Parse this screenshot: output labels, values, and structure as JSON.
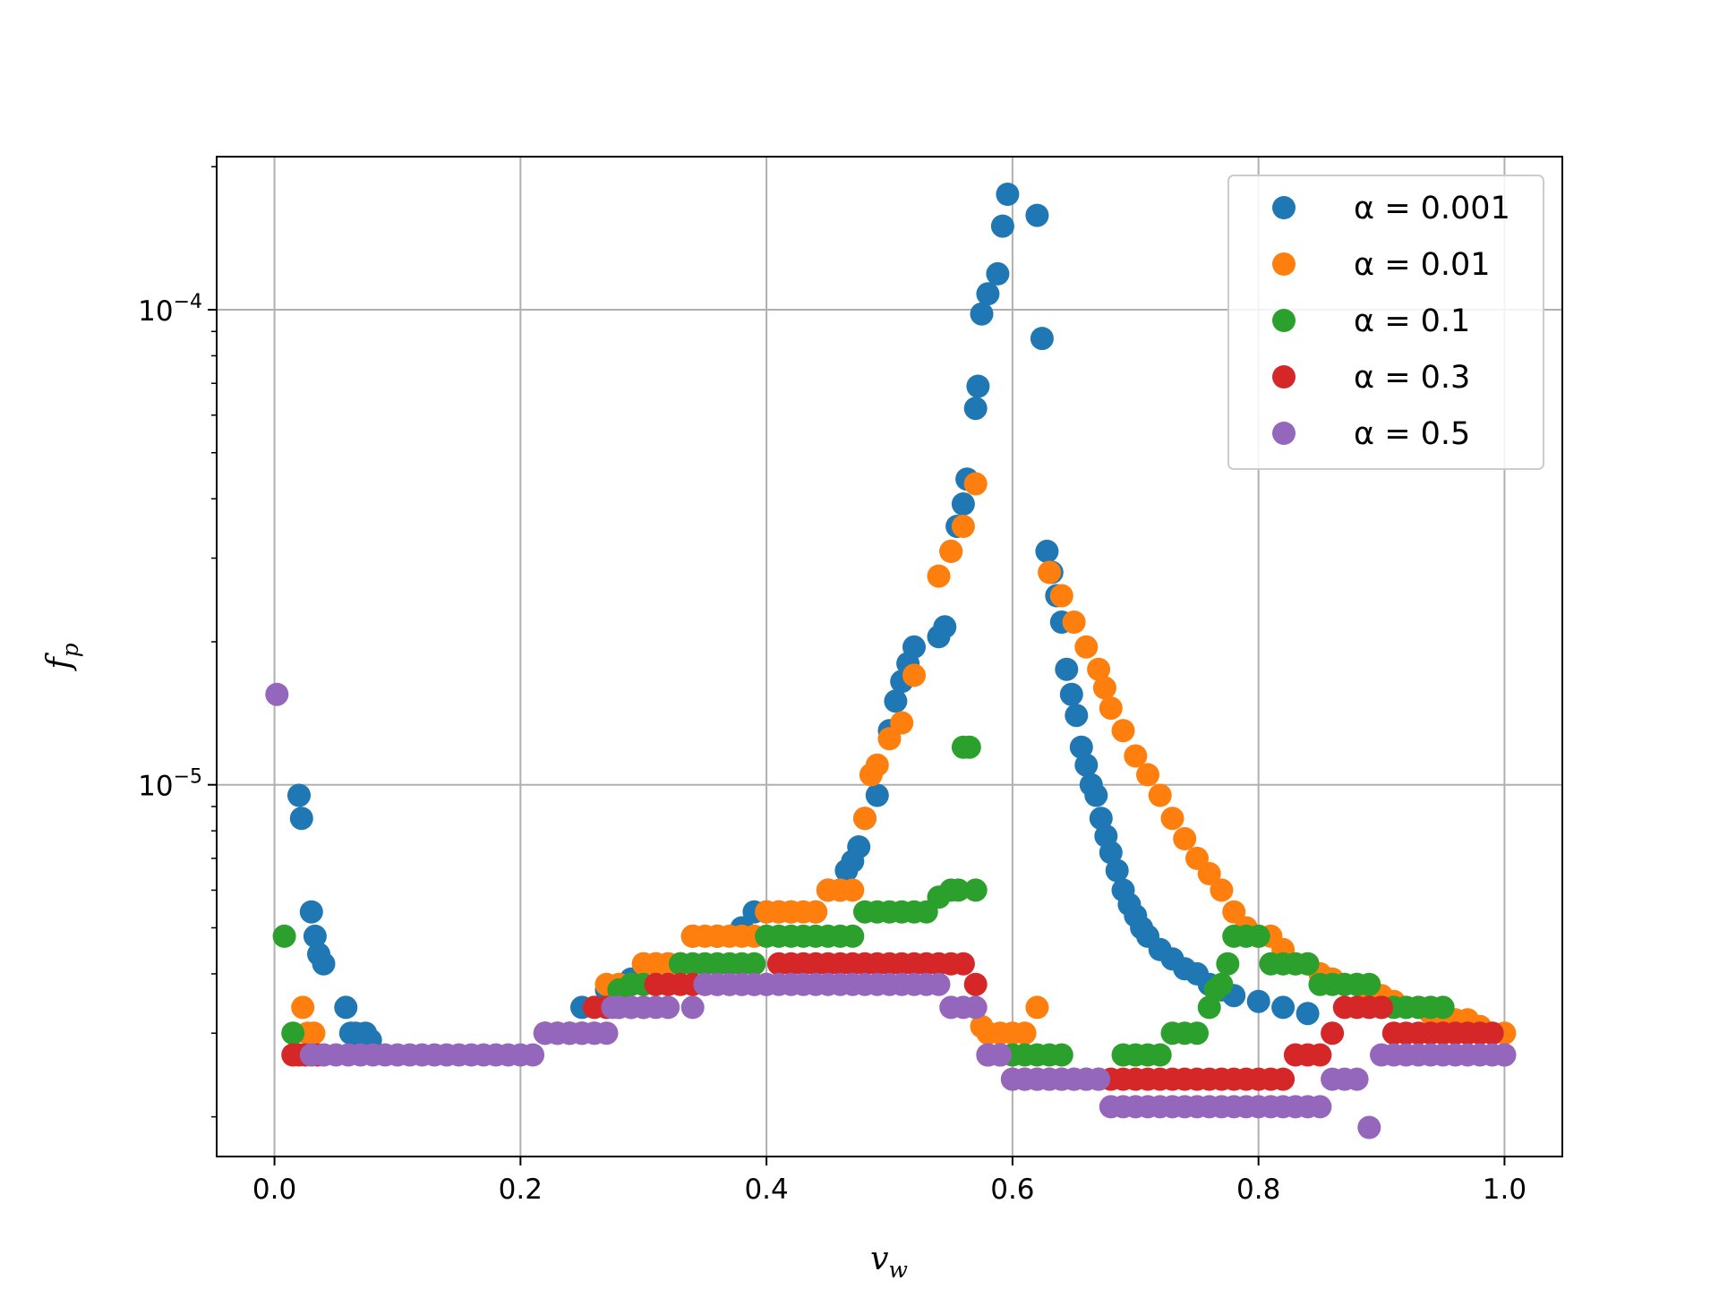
{
  "chart_data": {
    "type": "scatter",
    "title": "",
    "xlabel": "v_w",
    "ylabel": "f_p",
    "xlim": [
      -0.047,
      1.047
    ],
    "ylim": [
      1.65e-06,
      0.00021
    ],
    "yscale": "log",
    "grid": true,
    "legend_position": "top-right",
    "x_ticks": [
      {
        "value": 0.0,
        "label": "0.0"
      },
      {
        "value": 0.2,
        "label": "0.2"
      },
      {
        "value": 0.4,
        "label": "0.4"
      },
      {
        "value": 0.6,
        "label": "0.6"
      },
      {
        "value": 0.8,
        "label": "0.8"
      },
      {
        "value": 1.0,
        "label": "1.0"
      }
    ],
    "y_ticks": [
      {
        "value": 1e-05,
        "base": "10",
        "exponent": "−5"
      },
      {
        "value": 0.0001,
        "base": "10",
        "exponent": "−4"
      }
    ],
    "series": [
      {
        "name": "α = 0.001",
        "color": "#1f77b4",
        "x": [
          0.02,
          0.022,
          0.03,
          0.033,
          0.036,
          0.04,
          0.058,
          0.062,
          0.066,
          0.07,
          0.074,
          0.078,
          0.25,
          0.27,
          0.29,
          0.3,
          0.31,
          0.32,
          0.33,
          0.34,
          0.36,
          0.38,
          0.39,
          0.4,
          0.41,
          0.42,
          0.44,
          0.45,
          0.46,
          0.465,
          0.47,
          0.475,
          0.48,
          0.49,
          0.5,
          0.505,
          0.51,
          0.515,
          0.52,
          0.54,
          0.545,
          0.55,
          0.555,
          0.56,
          0.563,
          0.57,
          0.572,
          0.575,
          0.58,
          0.588,
          0.592,
          0.596,
          0.62,
          0.624,
          0.628,
          0.632,
          0.636,
          0.64,
          0.644,
          0.648,
          0.652,
          0.656,
          0.66,
          0.664,
          0.668,
          0.672,
          0.676,
          0.68,
          0.685,
          0.69,
          0.695,
          0.7,
          0.705,
          0.71,
          0.72,
          0.73,
          0.74,
          0.75,
          0.76,
          0.77,
          0.78,
          0.8,
          0.82,
          0.84
        ],
        "y": [
          9.5e-06,
          8.5e-06,
          5.4e-06,
          4.8e-06,
          4.4e-06,
          4.2e-06,
          3.4e-06,
          3e-06,
          3e-06,
          2.9e-06,
          3e-06,
          2.9e-06,
          3.4e-06,
          3.7e-06,
          3.9e-06,
          4.2e-06,
          4.2e-06,
          4.2e-06,
          4.2e-06,
          4.8e-06,
          4.8e-06,
          5e-06,
          5.4e-06,
          5.4e-06,
          5.4e-06,
          5.4e-06,
          5.4e-06,
          6e-06,
          6e-06,
          6.6e-06,
          6.9e-06,
          7.4e-06,
          8.5e-06,
          9.5e-06,
          1.3e-05,
          1.5e-05,
          1.65e-05,
          1.8e-05,
          1.95e-05,
          2.05e-05,
          2.15e-05,
          3.1e-05,
          3.5e-05,
          3.9e-05,
          4.4e-05,
          6.2e-05,
          6.9e-05,
          9.8e-05,
          0.000108,
          0.000119,
          0.00015,
          0.000175,
          0.000158,
          8.7e-05,
          3.1e-05,
          2.8e-05,
          2.5e-05,
          2.2e-05,
          1.75e-05,
          1.55e-05,
          1.4e-05,
          1.2e-05,
          1.1e-05,
          1e-05,
          9.5e-06,
          8.5e-06,
          7.8e-06,
          7.2e-06,
          6.6e-06,
          6e-06,
          5.6e-06,
          5.3e-06,
          5e-06,
          4.8e-06,
          4.5e-06,
          4.3e-06,
          4.1e-06,
          4e-06,
          3.8e-06,
          3.7e-06,
          3.6e-06,
          3.5e-06,
          3.4e-06,
          3.3e-06
        ]
      },
      {
        "name": "α = 0.01",
        "color": "#ff7f0e",
        "x": [
          0.023,
          0.027,
          0.032,
          0.27,
          0.28,
          0.29,
          0.3,
          0.31,
          0.32,
          0.33,
          0.34,
          0.35,
          0.36,
          0.37,
          0.38,
          0.39,
          0.4,
          0.41,
          0.42,
          0.43,
          0.44,
          0.45,
          0.46,
          0.47,
          0.48,
          0.485,
          0.49,
          0.5,
          0.51,
          0.52,
          0.54,
          0.55,
          0.56,
          0.57,
          0.575,
          0.58,
          0.59,
          0.6,
          0.61,
          0.62,
          0.63,
          0.64,
          0.65,
          0.66,
          0.67,
          0.675,
          0.68,
          0.69,
          0.7,
          0.71,
          0.72,
          0.73,
          0.74,
          0.75,
          0.76,
          0.77,
          0.78,
          0.79,
          0.8,
          0.81,
          0.82,
          0.83,
          0.84,
          0.85,
          0.86,
          0.87,
          0.88,
          0.89,
          0.9,
          0.91,
          0.92,
          0.93,
          0.94,
          0.95,
          0.96,
          0.97,
          0.98,
          0.99,
          1.0
        ],
        "y": [
          3.4e-06,
          3e-06,
          3e-06,
          3.8e-06,
          3.8e-06,
          3.8e-06,
          4.2e-06,
          4.2e-06,
          4.2e-06,
          4.2e-06,
          4.8e-06,
          4.8e-06,
          4.8e-06,
          4.8e-06,
          4.8e-06,
          4.8e-06,
          5.4e-06,
          5.4e-06,
          5.4e-06,
          5.4e-06,
          5.4e-06,
          6e-06,
          6e-06,
          6e-06,
          8.5e-06,
          1.05e-05,
          1.1e-05,
          1.25e-05,
          1.35e-05,
          1.7e-05,
          2.75e-05,
          3.1e-05,
          3.5e-05,
          4.3e-05,
          3.1e-06,
          3e-06,
          3e-06,
          3e-06,
          3e-06,
          3.4e-06,
          2.8e-05,
          2.5e-05,
          2.2e-05,
          1.95e-05,
          1.75e-05,
          1.6e-05,
          1.45e-05,
          1.3e-05,
          1.15e-05,
          1.05e-05,
          9.5e-06,
          8.5e-06,
          7.7e-06,
          7e-06,
          6.5e-06,
          6e-06,
          5.4e-06,
          5e-06,
          4.8e-06,
          4.8e-06,
          4.5e-06,
          4.2e-06,
          4.2e-06,
          4e-06,
          3.9e-06,
          3.8e-06,
          3.8e-06,
          3.7e-06,
          3.6e-06,
          3.5e-06,
          3.4e-06,
          3.4e-06,
          3.3e-06,
          3.3e-06,
          3.2e-06,
          3.2e-06,
          3.1e-06,
          3e-06,
          3e-06
        ]
      },
      {
        "name": "α = 0.1",
        "color": "#2ca02c",
        "x": [
          0.008,
          0.015,
          0.22,
          0.23,
          0.24,
          0.25,
          0.26,
          0.27,
          0.28,
          0.29,
          0.3,
          0.31,
          0.32,
          0.33,
          0.34,
          0.35,
          0.36,
          0.37,
          0.38,
          0.39,
          0.4,
          0.41,
          0.42,
          0.43,
          0.44,
          0.45,
          0.46,
          0.47,
          0.48,
          0.49,
          0.5,
          0.51,
          0.52,
          0.53,
          0.54,
          0.55,
          0.556,
          0.56,
          0.565,
          0.57,
          0.58,
          0.59,
          0.6,
          0.61,
          0.62,
          0.63,
          0.64,
          0.69,
          0.7,
          0.71,
          0.72,
          0.73,
          0.74,
          0.75,
          0.76,
          0.765,
          0.77,
          0.775,
          0.78,
          0.79,
          0.8,
          0.81,
          0.82,
          0.83,
          0.84,
          0.85,
          0.86,
          0.87,
          0.88,
          0.89,
          0.9,
          0.91,
          0.92,
          0.93,
          0.94,
          0.95
        ],
        "y": [
          4.8e-06,
          3e-06,
          3e-06,
          3e-06,
          3e-06,
          3e-06,
          3e-06,
          3.4e-06,
          3.7e-06,
          3.8e-06,
          3.8e-06,
          3.8e-06,
          3.8e-06,
          4.2e-06,
          4.2e-06,
          4.2e-06,
          4.2e-06,
          4.2e-06,
          4.2e-06,
          4.2e-06,
          4.8e-06,
          4.8e-06,
          4.8e-06,
          4.8e-06,
          4.8e-06,
          4.8e-06,
          4.8e-06,
          4.8e-06,
          5.4e-06,
          5.4e-06,
          5.4e-06,
          5.4e-06,
          5.4e-06,
          5.4e-06,
          5.8e-06,
          6e-06,
          6e-06,
          1.2e-05,
          1.2e-05,
          6e-06,
          2.7e-06,
          2.7e-06,
          2.7e-06,
          2.7e-06,
          2.7e-06,
          2.7e-06,
          2.7e-06,
          2.7e-06,
          2.7e-06,
          2.7e-06,
          2.7e-06,
          3e-06,
          3e-06,
          3e-06,
          3.4e-06,
          3.7e-06,
          3.8e-06,
          4.2e-06,
          4.8e-06,
          4.8e-06,
          4.8e-06,
          4.2e-06,
          4.2e-06,
          4.2e-06,
          4.2e-06,
          3.8e-06,
          3.8e-06,
          3.8e-06,
          3.8e-06,
          3.8e-06,
          3.4e-06,
          3.4e-06,
          3.4e-06,
          3.4e-06,
          3.4e-06,
          3.4e-06
        ]
      },
      {
        "name": "α = 0.3",
        "color": "#d62728",
        "x": [
          0.015,
          0.02,
          0.025,
          0.03,
          0.035,
          0.04,
          0.22,
          0.23,
          0.24,
          0.25,
          0.26,
          0.27,
          0.28,
          0.29,
          0.3,
          0.31,
          0.32,
          0.33,
          0.34,
          0.35,
          0.36,
          0.37,
          0.38,
          0.39,
          0.4,
          0.41,
          0.42,
          0.43,
          0.44,
          0.45,
          0.46,
          0.47,
          0.48,
          0.49,
          0.5,
          0.51,
          0.52,
          0.53,
          0.54,
          0.55,
          0.56,
          0.57,
          0.58,
          0.59,
          0.6,
          0.61,
          0.62,
          0.63,
          0.64,
          0.65,
          0.66,
          0.67,
          0.68,
          0.69,
          0.7,
          0.71,
          0.72,
          0.73,
          0.74,
          0.75,
          0.76,
          0.77,
          0.78,
          0.79,
          0.8,
          0.81,
          0.82,
          0.83,
          0.84,
          0.85,
          0.86,
          0.87,
          0.88,
          0.89,
          0.9,
          0.91,
          0.92,
          0.93,
          0.94,
          0.95,
          0.96,
          0.97,
          0.98,
          0.99,
          1.0
        ],
        "y": [
          2.7e-06,
          2.7e-06,
          2.7e-06,
          2.7e-06,
          2.7e-06,
          2.7e-06,
          3e-06,
          3e-06,
          3e-06,
          3e-06,
          3.4e-06,
          3.4e-06,
          3.4e-06,
          3.4e-06,
          3.4e-06,
          3.8e-06,
          3.8e-06,
          3.8e-06,
          3.8e-06,
          3.8e-06,
          3.8e-06,
          3.8e-06,
          3.8e-06,
          3.8e-06,
          3.8e-06,
          4.2e-06,
          4.2e-06,
          4.2e-06,
          4.2e-06,
          4.2e-06,
          4.2e-06,
          4.2e-06,
          4.2e-06,
          4.2e-06,
          4.2e-06,
          4.2e-06,
          4.2e-06,
          4.2e-06,
          4.2e-06,
          4.2e-06,
          4.2e-06,
          3.8e-06,
          2.7e-06,
          2.7e-06,
          2.4e-06,
          2.4e-06,
          2.4e-06,
          2.4e-06,
          2.4e-06,
          2.4e-06,
          2.4e-06,
          2.4e-06,
          2.4e-06,
          2.4e-06,
          2.4e-06,
          2.4e-06,
          2.4e-06,
          2.4e-06,
          2.4e-06,
          2.4e-06,
          2.4e-06,
          2.4e-06,
          2.4e-06,
          2.4e-06,
          2.4e-06,
          2.4e-06,
          2.4e-06,
          2.7e-06,
          2.7e-06,
          2.7e-06,
          3e-06,
          3.4e-06,
          3.4e-06,
          3.4e-06,
          3.4e-06,
          3e-06,
          3e-06,
          3e-06,
          3e-06,
          3e-06,
          3e-06,
          3e-06,
          3e-06,
          3e-06,
          2.7e-06
        ]
      },
      {
        "name": "α = 0.5",
        "color": "#9467bd",
        "x": [
          0.002,
          0.03,
          0.04,
          0.05,
          0.06,
          0.07,
          0.08,
          0.09,
          0.1,
          0.11,
          0.12,
          0.13,
          0.14,
          0.15,
          0.16,
          0.17,
          0.18,
          0.19,
          0.2,
          0.21,
          0.22,
          0.23,
          0.24,
          0.25,
          0.26,
          0.27,
          0.275,
          0.28,
          0.29,
          0.3,
          0.31,
          0.32,
          0.34,
          0.35,
          0.36,
          0.37,
          0.38,
          0.39,
          0.4,
          0.41,
          0.42,
          0.43,
          0.44,
          0.45,
          0.46,
          0.47,
          0.48,
          0.49,
          0.5,
          0.51,
          0.52,
          0.53,
          0.54,
          0.55,
          0.56,
          0.57,
          0.58,
          0.59,
          0.6,
          0.61,
          0.62,
          0.63,
          0.64,
          0.65,
          0.66,
          0.67,
          0.68,
          0.69,
          0.7,
          0.71,
          0.72,
          0.73,
          0.74,
          0.75,
          0.76,
          0.77,
          0.78,
          0.79,
          0.8,
          0.81,
          0.82,
          0.83,
          0.84,
          0.85,
          0.86,
          0.87,
          0.88,
          0.89,
          0.9,
          0.91,
          0.92,
          0.93,
          0.94,
          0.95,
          0.96,
          0.97,
          0.98,
          0.99,
          1.0
        ],
        "y": [
          1.55e-05,
          2.7e-06,
          2.7e-06,
          2.7e-06,
          2.7e-06,
          2.7e-06,
          2.7e-06,
          2.7e-06,
          2.7e-06,
          2.7e-06,
          2.7e-06,
          2.7e-06,
          2.7e-06,
          2.7e-06,
          2.7e-06,
          2.7e-06,
          2.7e-06,
          2.7e-06,
          2.7e-06,
          2.7e-06,
          3e-06,
          3e-06,
          3e-06,
          3e-06,
          3e-06,
          3e-06,
          3.4e-06,
          3.4e-06,
          3.4e-06,
          3.4e-06,
          3.4e-06,
          3.4e-06,
          3.4e-06,
          3.8e-06,
          3.8e-06,
          3.8e-06,
          3.8e-06,
          3.8e-06,
          3.8e-06,
          3.8e-06,
          3.8e-06,
          3.8e-06,
          3.8e-06,
          3.8e-06,
          3.8e-06,
          3.8e-06,
          3.8e-06,
          3.8e-06,
          3.8e-06,
          3.8e-06,
          3.8e-06,
          3.8e-06,
          3.8e-06,
          3.4e-06,
          3.4e-06,
          3.4e-06,
          2.7e-06,
          2.7e-06,
          2.4e-06,
          2.4e-06,
          2.4e-06,
          2.4e-06,
          2.4e-06,
          2.4e-06,
          2.4e-06,
          2.4e-06,
          2.1e-06,
          2.1e-06,
          2.1e-06,
          2.1e-06,
          2.1e-06,
          2.1e-06,
          2.1e-06,
          2.1e-06,
          2.1e-06,
          2.1e-06,
          2.1e-06,
          2.1e-06,
          2.1e-06,
          2.1e-06,
          2.1e-06,
          2.1e-06,
          2.1e-06,
          2.1e-06,
          2.4e-06,
          2.4e-06,
          2.4e-06,
          1.9e-06,
          2.7e-06,
          2.7e-06,
          2.7e-06,
          2.7e-06,
          2.7e-06,
          2.7e-06,
          2.7e-06,
          2.7e-06,
          2.7e-06,
          2.7e-06,
          2.7e-06
        ]
      }
    ]
  }
}
